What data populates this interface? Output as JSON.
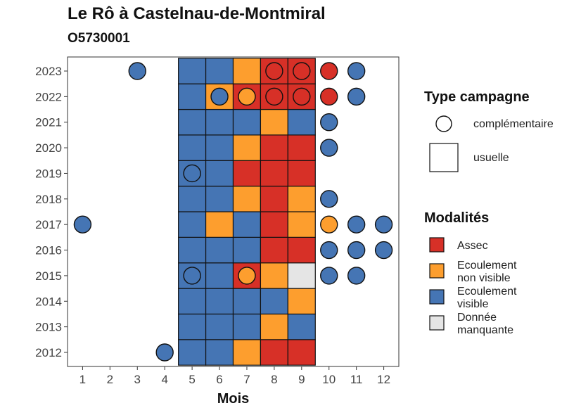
{
  "chart_data": {
    "type": "heatmap",
    "title": "Le Rô à Castelnau-de-Montmiral",
    "subtitle": "O5730001",
    "xlabel": "Mois",
    "ylabel": "",
    "x_ticks": [
      1,
      2,
      3,
      4,
      5,
      6,
      7,
      8,
      9,
      10,
      11,
      12
    ],
    "y_ticks": [
      2012,
      2013,
      2014,
      2015,
      2016,
      2017,
      2018,
      2019,
      2020,
      2021,
      2022,
      2023
    ],
    "modalites": {
      "title": "Modalités",
      "items": [
        {
          "key": "assec",
          "label_lines": [
            "Assec"
          ],
          "color": "#D73027"
        },
        {
          "key": "ecnv",
          "label_lines": [
            "Ecoulement",
            "non visible"
          ],
          "color": "#FD9E2E"
        },
        {
          "key": "ecv",
          "label_lines": [
            "Ecoulement",
            "visible"
          ],
          "color": "#4575B4"
        },
        {
          "key": "nd",
          "label_lines": [
            "Donnée",
            "manquante"
          ],
          "color": "#E5E5E5"
        }
      ]
    },
    "type_campagne": {
      "title": "Type campagne",
      "items": [
        {
          "key": "complementaire",
          "label": "complémentaire",
          "shape": "circle"
        },
        {
          "key": "usuelle",
          "label": "usuelle",
          "shape": "square"
        }
      ]
    },
    "usuelle": {
      "2023": [
        "ecv",
        "ecv",
        "ecnv",
        "assec",
        "assec"
      ],
      "2022": [
        "ecv",
        "ecnv",
        "assec",
        "assec",
        "assec"
      ],
      "2021": [
        "ecv",
        "ecv",
        "ecv",
        "ecnv",
        "ecv"
      ],
      "2020": [
        "ecv",
        "ecv",
        "ecnv",
        "assec",
        "assec"
      ],
      "2019": [
        "ecv",
        "ecv",
        "assec",
        "assec",
        "assec"
      ],
      "2018": [
        "ecv",
        "ecv",
        "ecnv",
        "assec",
        "ecnv"
      ],
      "2017": [
        "ecv",
        "ecnv",
        "ecv",
        "assec",
        "ecnv"
      ],
      "2016": [
        "ecv",
        "ecv",
        "ecv",
        "assec",
        "assec"
      ],
      "2015": [
        "ecv",
        "ecv",
        "assec",
        "ecnv",
        "nd"
      ],
      "2014": [
        "ecv",
        "ecv",
        "ecv",
        "ecv",
        "ecnv"
      ],
      "2013": [
        "ecv",
        "ecv",
        "ecv",
        "ecnv",
        "ecv"
      ],
      "2012": [
        "ecv",
        "ecv",
        "ecnv",
        "assec",
        "assec"
      ]
    },
    "usuelle_months": [
      5,
      6,
      7,
      8,
      9
    ],
    "complementaire": [
      {
        "year": 2023,
        "month": 3,
        "mod": "ecv"
      },
      {
        "year": 2023,
        "month": 8,
        "mod": "assec"
      },
      {
        "year": 2023,
        "month": 9,
        "mod": "assec"
      },
      {
        "year": 2023,
        "month": 10,
        "mod": "assec"
      },
      {
        "year": 2023,
        "month": 11,
        "mod": "ecv"
      },
      {
        "year": 2022,
        "month": 6,
        "mod": "ecv"
      },
      {
        "year": 2022,
        "month": 7,
        "mod": "ecnv"
      },
      {
        "year": 2022,
        "month": 8,
        "mod": "assec"
      },
      {
        "year": 2022,
        "month": 9,
        "mod": "assec"
      },
      {
        "year": 2022,
        "month": 10,
        "mod": "assec"
      },
      {
        "year": 2022,
        "month": 11,
        "mod": "ecv"
      },
      {
        "year": 2021,
        "month": 10,
        "mod": "ecv"
      },
      {
        "year": 2020,
        "month": 10,
        "mod": "ecv"
      },
      {
        "year": 2019,
        "month": 5,
        "mod": "ecv"
      },
      {
        "year": 2018,
        "month": 10,
        "mod": "ecv"
      },
      {
        "year": 2017,
        "month": 1,
        "mod": "ecv"
      },
      {
        "year": 2017,
        "month": 10,
        "mod": "ecnv"
      },
      {
        "year": 2017,
        "month": 11,
        "mod": "ecv"
      },
      {
        "year": 2017,
        "month": 12,
        "mod": "ecv"
      },
      {
        "year": 2016,
        "month": 10,
        "mod": "ecv"
      },
      {
        "year": 2016,
        "month": 11,
        "mod": "ecv"
      },
      {
        "year": 2016,
        "month": 12,
        "mod": "ecv"
      },
      {
        "year": 2015,
        "month": 5,
        "mod": "ecv"
      },
      {
        "year": 2015,
        "month": 7,
        "mod": "ecnv"
      },
      {
        "year": 2015,
        "month": 10,
        "mod": "ecv"
      },
      {
        "year": 2015,
        "month": 11,
        "mod": "ecv"
      },
      {
        "year": 2012,
        "month": 4,
        "mod": "ecv"
      }
    ]
  }
}
